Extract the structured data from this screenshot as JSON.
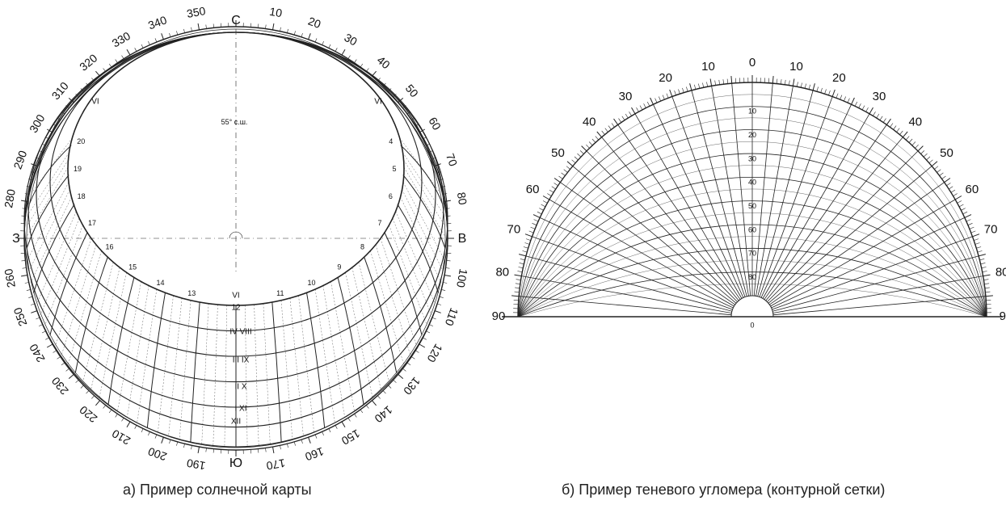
{
  "sun_chart": {
    "caption": "а) Пример солнечной карты",
    "cardinal": {
      "north": "С",
      "east": "В",
      "south": "Ю",
      "west": "З"
    },
    "azimuth_labels": [
      "10",
      "20",
      "30",
      "40",
      "50",
      "60",
      "70",
      "80",
      "100",
      "110",
      "120",
      "130",
      "140",
      "150",
      "160",
      "170",
      "190",
      "200",
      "210",
      "220",
      "230",
      "240",
      "250",
      "260",
      "280",
      "290",
      "300",
      "310",
      "320",
      "330",
      "340",
      "350"
    ],
    "latitude_label": "55° с.ш.",
    "hour_labels_left": [
      "20",
      "19",
      "18",
      "17",
      "16",
      "15",
      "14",
      "13"
    ],
    "hour_labels_right": [
      "4",
      "5",
      "6",
      "7",
      "8",
      "9",
      "10",
      "11"
    ],
    "noon_label": "12",
    "month_labels": {
      "top_left": "VI",
      "top_right": "VI",
      "noon_top": "VI",
      "pairs": [
        "V VII",
        "IV VIII",
        "III IX",
        "II X",
        "I XI"
      ],
      "bottom": "XII"
    }
  },
  "shadow_protractor": {
    "caption": "б) Пример теневого угломера (контурной сетки)",
    "outer_labels_left": [
      "0",
      "10",
      "20",
      "30",
      "40",
      "50",
      "60",
      "70",
      "80",
      "90"
    ],
    "outer_labels_right": [
      "10",
      "20",
      "30",
      "40",
      "50",
      "60",
      "70",
      "80",
      "90"
    ],
    "center_labels": [
      "10",
      "20",
      "30",
      "40",
      "50",
      "60",
      "70",
      "80"
    ],
    "bottom_label": "0"
  }
}
